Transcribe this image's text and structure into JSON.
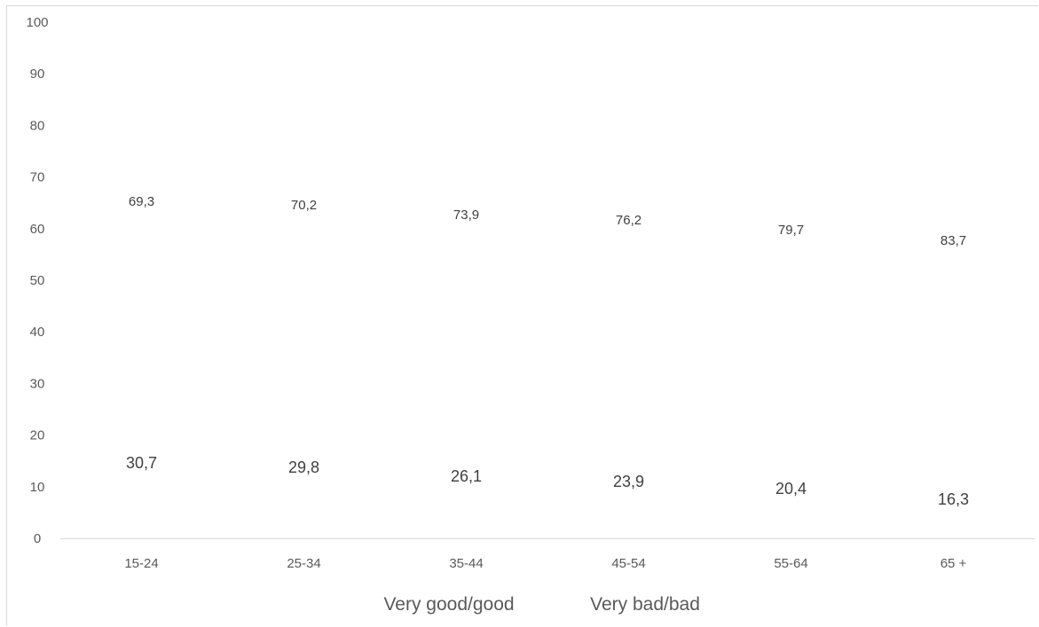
{
  "chart_data": {
    "type": "bar",
    "stacked": true,
    "categories": [
      "15-24",
      "25-34",
      "35-44",
      "45-54",
      "55-64",
      "65 +"
    ],
    "series": [
      {
        "name": "Very good/good",
        "values": [
          69.3,
          70.2,
          73.9,
          76.2,
          79.7,
          83.7
        ],
        "labels": [
          "69,3",
          "70,2",
          "73,9",
          "76,2",
          "79,7",
          "83,7"
        ]
      },
      {
        "name": "Very bad/bad",
        "values": [
          30.7,
          29.8,
          26.1,
          23.9,
          20.4,
          16.3
        ],
        "labels": [
          "30,7",
          "29,8",
          "26,1",
          "23,9",
          "20,4",
          "16,3"
        ]
      }
    ],
    "yticks": [
      "0",
      "10",
      "20",
      "30",
      "40",
      "50",
      "60",
      "70",
      "80",
      "90",
      "100"
    ],
    "ylim": [
      0,
      100
    ],
    "grid": false,
    "legend_position": "bottom"
  }
}
